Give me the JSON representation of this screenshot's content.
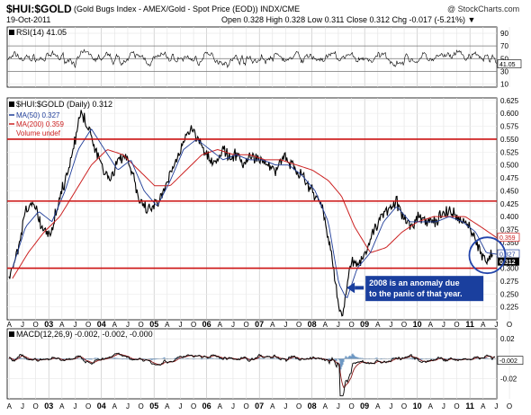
{
  "header": {
    "symbol": "$HUI:$GOLD",
    "description": "(Gold Bugs Index - AMEX/Gold - Spot Price (EOD)) INDX/CME",
    "date": "19-Oct-2011",
    "source": "@ StockCharts.com",
    "quote": "Open 0.328  High 0.328  Low 0.311  Close 0.312  Chg -0.017 (-5.21%) ▼"
  },
  "rsi": {
    "legend": "RSI(14) 41.05",
    "last_tag": "41.05",
    "ticks": [
      "90",
      "70",
      "50",
      "30",
      "10"
    ]
  },
  "price": {
    "legend_main": "$HUI:$GOLD (Daily) 0.312",
    "legend_ma50": "MA(50) 0.327",
    "legend_ma200": "MA(200) 0.359",
    "legend_volume": "Volume undef",
    "tag_ma200": "0.359",
    "tag_ma50": "0.327",
    "tag_close": "0.312",
    "annotation": "2008 is an anomaly due to the panic of that year."
  },
  "macd": {
    "legend": "MACD(12,26,9) -0.002, -0.002, -0.000",
    "ticks": [
      "0.02",
      "-0.002",
      "-0.02"
    ],
    "last_tag": "-0.002"
  },
  "colors": {
    "price": "#000000",
    "ma50": "#1f3d99",
    "ma200": "#cc2222",
    "hline": "#cc1111",
    "annotation_bg": "#1a3f9e",
    "circle": "#2244aa",
    "macd_signal": "#8b1a1a",
    "macd_hist": "#4a7fb5"
  },
  "chart_data": [
    {
      "type": "line",
      "title": "$HUI:$GOLD (Daily) 0.312",
      "x_labels": [
        "A",
        "J",
        "O",
        "03",
        "A",
        "J",
        "O",
        "04",
        "A",
        "J",
        "O",
        "05",
        "A",
        "J",
        "O",
        "06",
        "A",
        "J",
        "O",
        "07",
        "A",
        "J",
        "O",
        "08",
        "A",
        "J",
        "O",
        "09",
        "A",
        "J",
        "O",
        "10",
        "A",
        "J",
        "O",
        "11",
        "A",
        "J",
        "O"
      ],
      "y_ticks": [
        0.225,
        0.25,
        0.275,
        0.3,
        0.325,
        0.35,
        0.375,
        0.4,
        0.425,
        0.45,
        0.475,
        0.5,
        0.525,
        0.55,
        0.575,
        0.6,
        0.625
      ],
      "ylim": [
        0.2,
        0.63
      ],
      "x_start": 2002.5,
      "x_end": 2011.8,
      "horizontal_lines": [
        0.55,
        0.43,
        0.3
      ],
      "series": [
        {
          "name": "$HUI:$GOLD",
          "x": [
            2002.5,
            2002.7,
            2002.85,
            2003.0,
            2003.15,
            2003.3,
            2003.45,
            2003.6,
            2003.75,
            2003.9,
            2004.0,
            2004.15,
            2004.3,
            2004.45,
            2004.6,
            2004.75,
            2004.9,
            2005.0,
            2005.15,
            2005.3,
            2005.45,
            2005.6,
            2005.75,
            2005.9,
            2006.0,
            2006.15,
            2006.3,
            2006.45,
            2006.6,
            2006.75,
            2006.9,
            2007.0,
            2007.15,
            2007.3,
            2007.45,
            2007.6,
            2007.75,
            2007.9,
            2008.0,
            2008.15,
            2008.3,
            2008.45,
            2008.6,
            2008.7,
            2008.8,
            2008.87,
            2008.95,
            2009.05,
            2009.15,
            2009.3,
            2009.45,
            2009.6,
            2009.75,
            2009.9,
            2010.0,
            2010.15,
            2010.3,
            2010.45,
            2010.6,
            2010.75,
            2010.9,
            2011.0,
            2011.15,
            2011.3,
            2011.45,
            2011.6,
            2011.7,
            2011.8
          ],
          "values": [
            0.27,
            0.33,
            0.41,
            0.43,
            0.38,
            0.36,
            0.42,
            0.47,
            0.53,
            0.6,
            0.58,
            0.54,
            0.5,
            0.47,
            0.51,
            0.52,
            0.48,
            0.43,
            0.41,
            0.42,
            0.44,
            0.48,
            0.52,
            0.56,
            0.57,
            0.55,
            0.52,
            0.5,
            0.53,
            0.51,
            0.52,
            0.5,
            0.52,
            0.51,
            0.5,
            0.49,
            0.52,
            0.5,
            0.49,
            0.47,
            0.45,
            0.43,
            0.36,
            0.3,
            0.22,
            0.21,
            0.27,
            0.32,
            0.3,
            0.33,
            0.37,
            0.4,
            0.42,
            0.43,
            0.4,
            0.38,
            0.4,
            0.39,
            0.39,
            0.4,
            0.41,
            0.4,
            0.39,
            0.38,
            0.34,
            0.31,
            0.33,
            0.312
          ]
        },
        {
          "name": "MA(50)",
          "x": [
            2002.6,
            2002.85,
            2003.1,
            2003.35,
            2003.6,
            2003.85,
            2004.1,
            2004.35,
            2004.6,
            2004.85,
            2005.1,
            2005.35,
            2005.6,
            2005.85,
            2006.1,
            2006.35,
            2006.6,
            2006.85,
            2007.1,
            2007.35,
            2007.6,
            2007.85,
            2008.1,
            2008.35,
            2008.6,
            2008.8,
            2008.95,
            2009.15,
            2009.4,
            2009.65,
            2009.9,
            2010.15,
            2010.4,
            2010.65,
            2010.9,
            2011.15,
            2011.4,
            2011.6,
            2011.8
          ],
          "values": [
            0.3,
            0.38,
            0.41,
            0.39,
            0.45,
            0.53,
            0.57,
            0.53,
            0.49,
            0.51,
            0.45,
            0.42,
            0.47,
            0.53,
            0.55,
            0.53,
            0.51,
            0.52,
            0.51,
            0.51,
            0.5,
            0.5,
            0.48,
            0.45,
            0.39,
            0.27,
            0.24,
            0.3,
            0.33,
            0.39,
            0.42,
            0.39,
            0.39,
            0.39,
            0.4,
            0.39,
            0.37,
            0.33,
            0.327
          ]
        },
        {
          "name": "MA(200)",
          "x": [
            2002.6,
            2002.9,
            2003.2,
            2003.5,
            2003.8,
            2004.1,
            2004.4,
            2004.7,
            2005.0,
            2005.3,
            2005.6,
            2005.9,
            2006.2,
            2006.5,
            2006.8,
            2007.1,
            2007.4,
            2007.7,
            2008.0,
            2008.3,
            2008.6,
            2008.85,
            2009.1,
            2009.4,
            2009.7,
            2010.0,
            2010.3,
            2010.6,
            2010.9,
            2011.2,
            2011.5,
            2011.8
          ],
          "values": [
            0.28,
            0.33,
            0.37,
            0.4,
            0.45,
            0.5,
            0.53,
            0.52,
            0.49,
            0.46,
            0.46,
            0.49,
            0.52,
            0.53,
            0.52,
            0.52,
            0.51,
            0.51,
            0.5,
            0.49,
            0.47,
            0.44,
            0.38,
            0.33,
            0.34,
            0.37,
            0.39,
            0.4,
            0.4,
            0.4,
            0.38,
            0.359
          ]
        }
      ]
    },
    {
      "type": "line",
      "title": "RSI(14) 41.05",
      "y_ticks": [
        10,
        30,
        50,
        70,
        90
      ],
      "ylim": [
        5,
        100
      ],
      "reference_lines": [
        70,
        50,
        30
      ],
      "last_value": 41.05,
      "typical_range": [
        30,
        70
      ]
    },
    {
      "type": "line",
      "title": "MACD(12,26,9) -0.002, -0.002, -0.000",
      "y_ticks": [
        0.02,
        -0.002,
        -0.02
      ],
      "ylim": [
        -0.04,
        0.03
      ],
      "last_values": {
        "macd": -0.002,
        "signal": -0.002,
        "histogram": -0.0
      },
      "extremes": {
        "min": -0.037,
        "min_x": 2008.85
      }
    }
  ]
}
